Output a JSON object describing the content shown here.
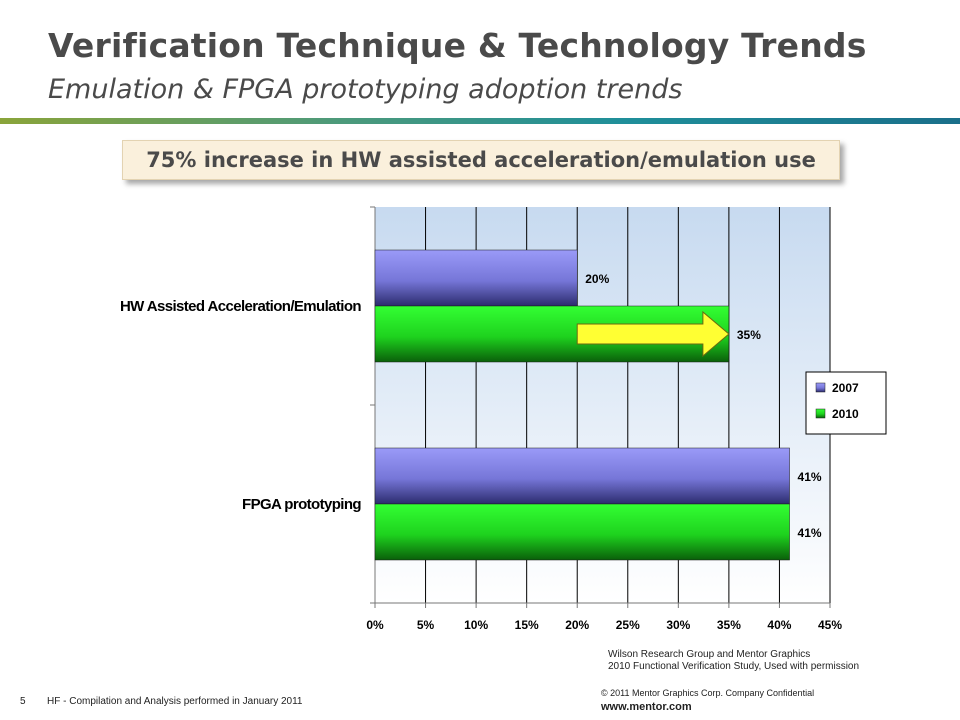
{
  "slide": {
    "title": "Verification Technique & Technology Trends",
    "subtitle": "Emulation & FPGA prototyping adoption trends",
    "callout": "75% increase in HW assisted acceleration/emulation use",
    "source_line1": "Wilson Research Group and Mentor Graphics",
    "source_line2": "2010 Functional Verification Study,  Used with permission",
    "copyright": "© 2011 Mentor Graphics Corp. Company Confidential",
    "website": "www.mentor.com",
    "page_number": "5",
    "footer_note": "HF - Compilation and Analysis performed in January 2011"
  },
  "chart_data": {
    "type": "bar",
    "orientation": "horizontal",
    "categories": [
      "HW Assisted Acceleration/Emulation",
      "FPGA prototyping"
    ],
    "series": [
      {
        "name": "2007",
        "values": [
          20,
          41
        ],
        "labels": [
          "20%",
          "41%"
        ],
        "color": "#8c8cf0"
      },
      {
        "name": "2010",
        "values": [
          35,
          41
        ],
        "labels": [
          "35%",
          "41%"
        ],
        "color": "#22d022"
      }
    ],
    "x_ticks": [
      "0%",
      "5%",
      "10%",
      "15%",
      "20%",
      "25%",
      "30%",
      "35%",
      "40%",
      "45%"
    ],
    "xlim": [
      0,
      45
    ],
    "grid": true,
    "legend": "right",
    "annotation": "yellow arrow indicating increase from 2007 to 2010",
    "arrow_color": "#ffff33"
  }
}
